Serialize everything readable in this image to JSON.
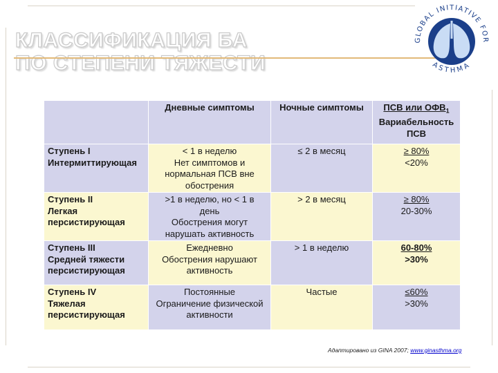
{
  "title": {
    "line1": "КЛАССИФИКАЦИЯ БА",
    "line2": "ПО СТЕПЕНИ ТЯЖЕСТИ"
  },
  "logo": {
    "top_text": "GLOBAL INITIATIVE FOR",
    "bottom_text": "ASTHMA",
    "colors": {
      "ring": "#1b3f8a",
      "lungs": "#5a86c9"
    }
  },
  "table": {
    "headers": {
      "col1": "",
      "col2": "Дневные симптомы",
      "col3": "Ночные симптомы",
      "col4_line1": "ПСВ или ОФВ",
      "col4_sub": "1",
      "col4_line2": "Вариабельность",
      "col4_line3": "ПСВ"
    },
    "rows": [
      {
        "stage": "Ступень I",
        "name": "Интермиттирующая",
        "name2": "",
        "day": [
          "< 1 в неделю",
          "Нет симптомов и",
          "нормальная ПСВ вне",
          "обострения"
        ],
        "night": "≤ 2 в месяц",
        "pef": "≥ 80%",
        "pef_var": "<20%"
      },
      {
        "stage": "Ступень II",
        "name": "Легкая",
        "name2": "персистирующая",
        "day": [
          ">1 в неделю, но < 1 в",
          "день",
          "Обострения могут",
          "нарушать активность"
        ],
        "night": "> 2 в месяц",
        "pef": "≥ 80%",
        "pef_var": "20-30%"
      },
      {
        "stage": "Ступень III",
        "name": "Средней тяжести",
        "name2": "персистирующая",
        "day": [
          "Ежедневно",
          "Обострения нарушают",
          "активность"
        ],
        "night": "> 1 в неделю",
        "pef": "60-80%",
        "pef_var": ">30%"
      },
      {
        "stage": "Ступень IV",
        "name": "Тяжелая",
        "name2": "персистирующая",
        "day": [
          "Постоянные",
          "Ограничение физической",
          "активности"
        ],
        "night": "Частые",
        "pef": "≤60%",
        "pef_var": ">30%"
      }
    ]
  },
  "footnote": {
    "text": "Адаптировано из GINA 2007; ",
    "link": "www.ginasthma.org"
  }
}
